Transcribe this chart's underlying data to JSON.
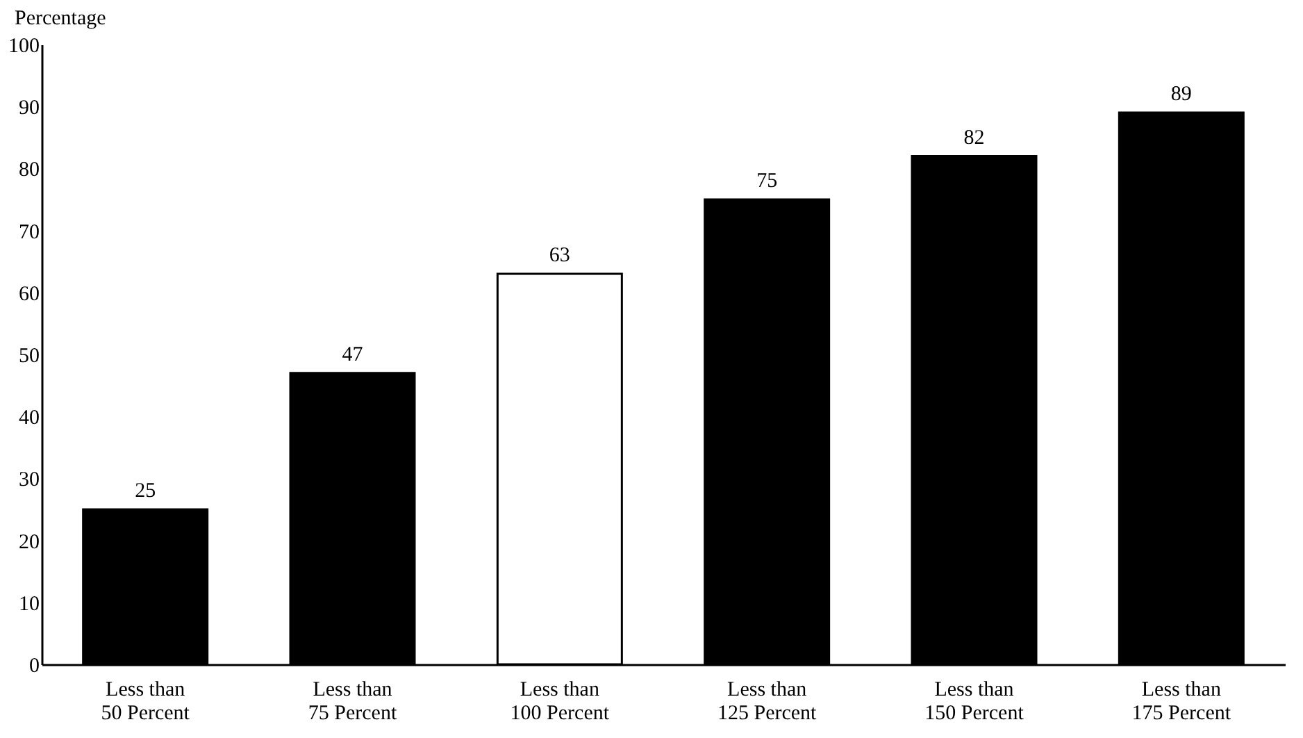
{
  "chart_data": {
    "type": "bar",
    "ylabel": "Percentage",
    "categories": [
      "Less than\n50 Percent",
      "Less than\n75 Percent",
      "Less than\n100 Percent",
      "Less than\n125 Percent",
      "Less than\n150 Percent",
      "Less than\n175 Percent"
    ],
    "values": [
      25,
      47,
      63,
      75,
      82,
      89
    ],
    "colors": [
      "#000000",
      "#000000",
      "#ffffff",
      "#000000",
      "#000000",
      "#000000"
    ],
    "ylim": [
      0,
      100
    ],
    "yticks": [
      0,
      10,
      20,
      30,
      40,
      50,
      60,
      70,
      80,
      90,
      100
    ],
    "data_labels": true,
    "grid": false
  }
}
